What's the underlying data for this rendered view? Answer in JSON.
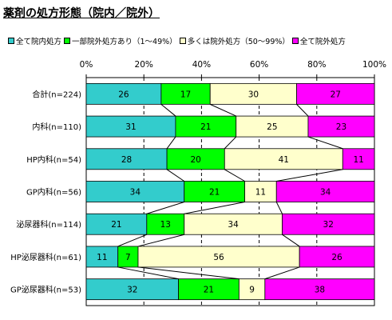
{
  "chart_data": {
    "type": "bar",
    "stacked": true,
    "orientation": "horizontal",
    "percent_scale": true,
    "title": "薬剤の処方形態（院内／院外）",
    "categories": [
      "合計(n=224)",
      "内科(n=110)",
      "HP内科(n=54)",
      "GP内科(n=56)",
      "泌尿器科(n=114)",
      "HP泌尿器科(n=61)",
      "GP泌尿器科(n=53)"
    ],
    "series": [
      {
        "name": "全て院内処方",
        "color": "#33CCCC",
        "values": [
          26,
          31,
          28,
          34,
          21,
          11,
          32
        ]
      },
      {
        "name": "一部院外処方あり（1～49%）",
        "color": "#00FF00",
        "values": [
          17,
          21,
          20,
          21,
          13,
          7,
          21
        ]
      },
      {
        "name": "多くは院外処方（50～99%）",
        "color": "#FFFFCC",
        "values": [
          30,
          25,
          41,
          11,
          34,
          56,
          9
        ]
      },
      {
        "name": "全て院外処方",
        "color": "#FF00FF",
        "values": [
          27,
          23,
          11,
          34,
          32,
          26,
          38
        ]
      }
    ],
    "xlim": [
      0,
      100
    ],
    "x_ticks": [
      "0%",
      "20%",
      "40%",
      "60%",
      "80%",
      "100%"
    ],
    "grid": "dashed vertical",
    "series_lines": true,
    "legend_position": "top"
  }
}
